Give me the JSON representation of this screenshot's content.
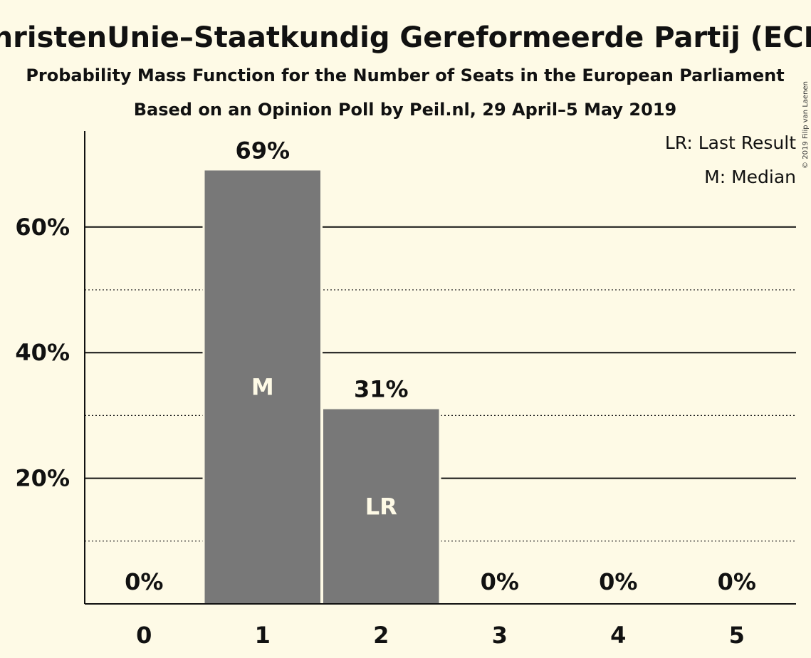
{
  "title": "ChristenUnie–Staatkundig Gereformeerde Partij (ECR)",
  "subtitle1": "Probability Mass Function for the Number of Seats in the European Parliament",
  "subtitle2": "Based on an Opinion Poll by Peil.nl, 29 April–5 May 2019",
  "copyright": "© 2019 Filip van Laenen",
  "legend": {
    "last_result": "LR: Last Result",
    "median": "M: Median"
  },
  "colors": {
    "background": "#fefae6",
    "bar": "#787878",
    "axis": "#111111"
  },
  "chart_data": {
    "type": "bar",
    "categories": [
      "0",
      "1",
      "2",
      "3",
      "4",
      "5"
    ],
    "values": [
      0,
      69,
      31,
      0,
      0,
      0
    ],
    "value_labels": [
      "0%",
      "69%",
      "31%",
      "0%",
      "0%",
      "0%"
    ],
    "in_bar_labels": [
      "",
      "M",
      "LR",
      "",
      "",
      ""
    ],
    "ylim": [
      0,
      75
    ],
    "major_ticks": [
      20,
      40,
      60
    ],
    "major_tick_labels": [
      "20%",
      "40%",
      "60%"
    ],
    "minor_gridlines": [
      10,
      30,
      50
    ],
    "legend_placement": "top-right",
    "grid": true
  }
}
